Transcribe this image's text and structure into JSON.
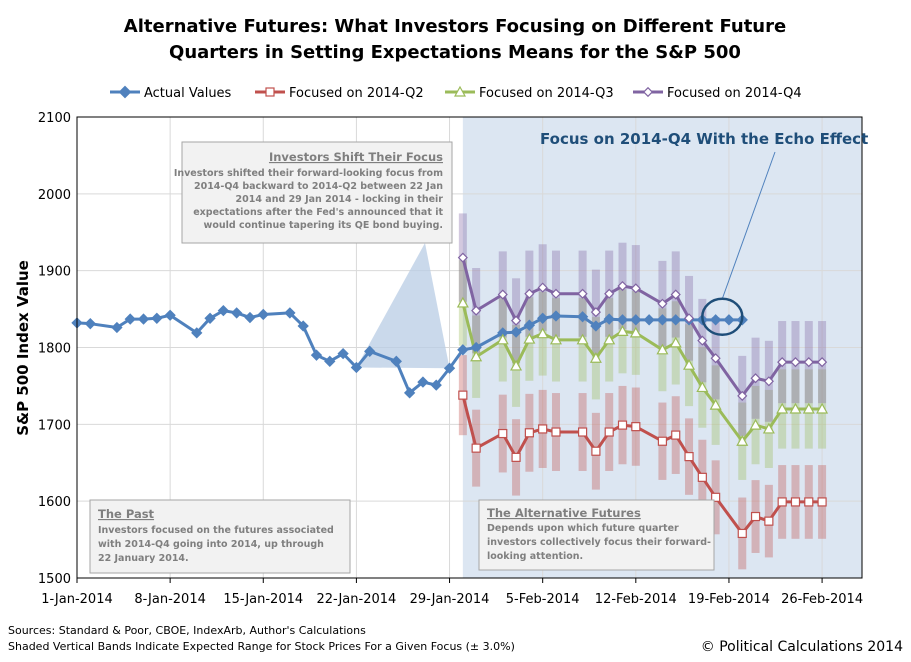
{
  "colors": {
    "actual": "#4f81bd",
    "q2": "#c0504d",
    "q3": "#9bbb59",
    "q4": "#8064a2",
    "shade": "#dce6f2",
    "focus": "#1f4e79",
    "box_text": "#7f7f7f"
  },
  "chart_data": {
    "type": "line",
    "title_line1": "Alternative Futures: What Investors Focusing on Different Future",
    "title_line2": "Quarters in Setting Expectations Means for the S&P 500",
    "ylabel": "S&P 500 Index Value",
    "ylim": [
      1500,
      2100
    ],
    "yticks": [
      "2100",
      "2000",
      "1900",
      "1800",
      "1700",
      "1600",
      "1500"
    ],
    "ytick_values": [
      2100,
      2000,
      1900,
      1800,
      1700,
      1600,
      1500
    ],
    "xlim": [
      0,
      59
    ],
    "xtick_labels": [
      "1-Jan-2014",
      "8-Jan-2014",
      "15-Jan-2014",
      "22-Jan-2014",
      "29-Jan-2014",
      "5-Feb-2014",
      "12-Feb-2014",
      "19-Feb-2014",
      "26-Feb-2014"
    ],
    "xtick_values": [
      0,
      7,
      14,
      21,
      28,
      35,
      42,
      49,
      56
    ],
    "shaded_region_start": 29,
    "band_pct": 0.03,
    "legend": [
      "Actual Values",
      "Focused on 2014-Q2",
      "Focused on 2014-Q3",
      "Focused on 2014-Q4"
    ],
    "series": [
      {
        "name": "Actual Values",
        "key": "actual",
        "x": [
          0,
          1,
          3,
          4,
          5,
          6,
          7,
          9,
          10,
          11,
          12,
          13,
          14,
          16,
          17,
          18,
          19,
          20,
          21,
          22,
          24,
          25,
          26,
          27,
          28,
          29,
          30,
          32,
          33,
          34,
          35,
          36,
          38,
          39,
          40,
          41,
          42,
          43,
          44,
          45,
          46,
          47,
          48,
          49,
          50
        ],
        "values": [
          1832,
          1831,
          1826,
          1837,
          1837,
          1838,
          1842,
          1819,
          1838,
          1848,
          1845,
          1839,
          1843,
          1845,
          1828,
          1790,
          1782,
          1792,
          1774,
          1795,
          1782,
          1741,
          1755,
          1751,
          1773,
          1797,
          1800,
          1819,
          1820,
          1829,
          1838,
          1841,
          1840,
          1828,
          1837,
          1836,
          1836,
          1836,
          1836,
          1836,
          1836,
          1836,
          1836,
          1836,
          1836
        ]
      },
      {
        "name": "Focused on 2014-Q2",
        "key": "q2",
        "x": [
          29,
          30,
          32,
          33,
          34,
          35,
          36,
          38,
          39,
          40,
          41,
          42,
          44,
          45,
          46,
          47,
          48,
          50,
          51,
          52,
          53,
          54,
          55,
          56
        ],
        "values": [
          1738,
          1669,
          1688,
          1657,
          1689,
          1694,
          1690,
          1690,
          1665,
          1690,
          1699,
          1697,
          1678,
          1686,
          1658,
          1631,
          1605,
          1558,
          1580,
          1574,
          1599,
          1599,
          1599,
          1599
        ]
      },
      {
        "name": "Focused on 2014-Q3",
        "key": "q3",
        "x": [
          29,
          30,
          32,
          33,
          34,
          35,
          36,
          38,
          39,
          40,
          41,
          42,
          44,
          45,
          46,
          47,
          48,
          50,
          51,
          52,
          53,
          54,
          55,
          56
        ],
        "values": [
          1858,
          1788,
          1810,
          1776,
          1811,
          1818,
          1810,
          1810,
          1786,
          1810,
          1821,
          1819,
          1797,
          1806,
          1777,
          1748,
          1725,
          1678,
          1699,
          1694,
          1720,
          1720,
          1720,
          1720
        ]
      },
      {
        "name": "Focused on 2014-Q4",
        "key": "q4",
        "x": [
          29,
          30,
          32,
          33,
          34,
          35,
          36,
          38,
          39,
          40,
          41,
          42,
          44,
          45,
          46,
          47,
          48,
          50,
          51,
          52,
          53,
          54,
          55,
          56
        ],
        "values": [
          1917,
          1848,
          1869,
          1835,
          1870,
          1878,
          1870,
          1870,
          1846,
          1870,
          1880,
          1877,
          1857,
          1869,
          1838,
          1809,
          1786,
          1737,
          1760,
          1756,
          1781,
          1781,
          1781,
          1781
        ]
      }
    ],
    "annotations": {
      "focus_label": "Focus on 2014-Q4  With the Echo Effect",
      "focus_circle_x": 48.5,
      "focus_circle_y": 1840,
      "shift_title": "Investors Shift Their Focus",
      "shift_lines": [
        "Investors shifted their forward-looking  focus from",
        "2014-Q4 backward to 2014-Q2 between 22 Jan",
        "2014 and 29 Jan 2014 - locking in their",
        "expectations after the Fed's announced  that it",
        "would continue tapering its QE bond buying."
      ],
      "past_title": "The Past",
      "past_lines": [
        "Investors focused on the futures associated",
        "with 2014-Q4 going into 2014, up through",
        "22 January 2014."
      ],
      "alt_title": "The Alternative Futures",
      "alt_lines": [
        "Depends upon which future quarter",
        "investors collectively focus their forward-",
        "looking attention."
      ]
    }
  },
  "footer": {
    "sources": "Sources: Standard & Poor, CBOE, IndexArb, Author's Calculations",
    "bands_note": "Shaded Vertical Bands Indicate Expected Range for Stock Prices For a Given Focus (± 3.0%)",
    "copyright": "© Political Calculations 2014"
  }
}
